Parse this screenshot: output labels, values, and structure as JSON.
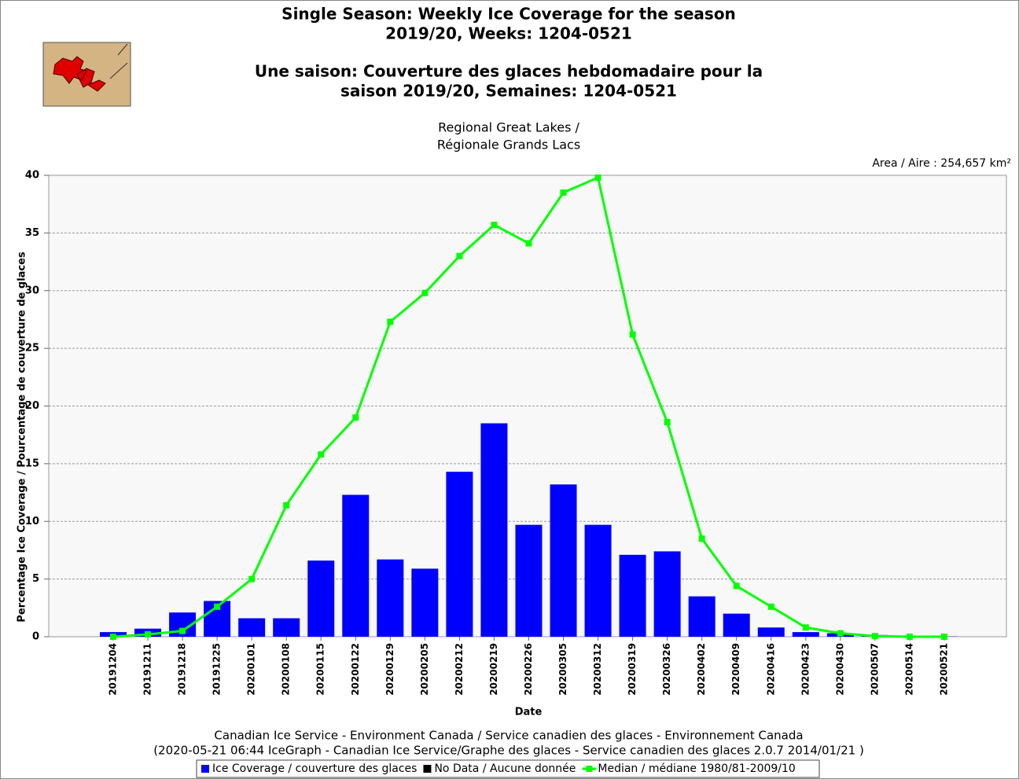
{
  "chart_data": {
    "type": "bar",
    "title": [
      "Single Season: Weekly Ice Coverage for the season",
      "2019/20, Weeks: 1204-0521",
      "Une saison: Couverture des glaces hebdomadaire pour la",
      "saison 2019/20, Semaines: 1204-0521"
    ],
    "subtitle": [
      "Regional Great Lakes /",
      "Régionale Grands Lacs"
    ],
    "annotation": "Area / Aire : 254,657 km²",
    "x_label": "Date",
    "y_label": "Percentage Ice Coverage / Pourcentage de couverture de glaces",
    "footer": [
      "Canadian Ice Service - Environment Canada / Service canadien des glaces - Environnement Canada",
      "(2020-05-21 06:44 IceGraph - Canadian Ice Service/Graphe des glaces - Service canadien des glaces 2.0.7 2014/01/21 )"
    ],
    "categories": [
      "20191204",
      "20191211",
      "20191218",
      "20191225",
      "20200101",
      "20200108",
      "20200115",
      "20200122",
      "20200129",
      "20200205",
      "20200212",
      "20200219",
      "20200226",
      "20200305",
      "20200312",
      "20200319",
      "20200326",
      "20200402",
      "20200409",
      "20200416",
      "20200423",
      "20200430",
      "20200507",
      "20200514",
      "20200521"
    ],
    "series": [
      {
        "name": "Ice Coverage / couverture des glaces",
        "type": "bar",
        "color": "#0000ff",
        "values": [
          0.4,
          0.7,
          2.1,
          3.1,
          1.6,
          1.6,
          6.6,
          12.3,
          6.7,
          5.9,
          14.3,
          18.5,
          9.7,
          13.2,
          9.7,
          7.1,
          7.4,
          3.5,
          2.0,
          0.8,
          0.4,
          0.3,
          0.15,
          0.05,
          0.02
        ]
      },
      {
        "name": "No Data / Aucune donnée",
        "type": "bar",
        "color": "#000000",
        "values": [
          null,
          null,
          null,
          null,
          null,
          null,
          null,
          null,
          null,
          null,
          null,
          null,
          null,
          null,
          null,
          null,
          null,
          null,
          null,
          null,
          null,
          null,
          null,
          null,
          null
        ]
      },
      {
        "name": "Median / médiane 1980/81-2009/10",
        "type": "line",
        "color": "#00ff00",
        "values": [
          0.0,
          0.2,
          0.5,
          2.6,
          5.0,
          11.4,
          15.8,
          19.0,
          27.3,
          29.8,
          33.0,
          35.7,
          34.1,
          38.5,
          39.8,
          26.2,
          18.6,
          8.5,
          4.4,
          2.6,
          0.8,
          0.3,
          0.05,
          0.0,
          0.0
        ]
      }
    ],
    "ylim": [
      0,
      40
    ],
    "yticks": [
      0,
      5,
      10,
      15,
      20,
      25,
      30,
      35,
      40
    ],
    "grid": true
  }
}
